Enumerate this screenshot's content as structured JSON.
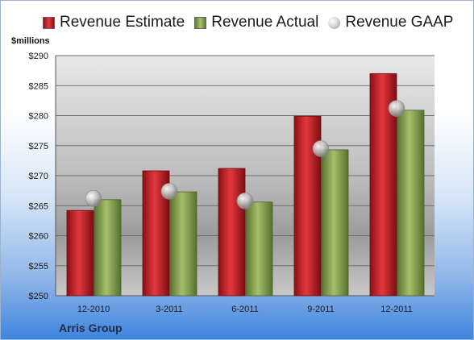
{
  "chart_data": {
    "type": "bar",
    "title": "",
    "ylabel": "$millions",
    "xlabel": "",
    "categories": [
      "12-2010",
      "3-2011",
      "6-2011",
      "9-2011",
      "12-2011"
    ],
    "series": [
      {
        "name": "Revenue Estimate",
        "values": [
          264.2,
          270.8,
          271.2,
          279.9,
          287.0
        ],
        "color": "#c81e25",
        "mark": "bar"
      },
      {
        "name": "Revenue Actual",
        "values": [
          266.0,
          267.3,
          265.6,
          274.3,
          280.9
        ],
        "color": "#8da85a",
        "mark": "bar"
      },
      {
        "name": "Revenue GAAP",
        "values": [
          266.2,
          267.4,
          265.8,
          274.5,
          281.2
        ],
        "color": "#bfbfbf",
        "mark": "sphere"
      }
    ],
    "ylim": [
      250,
      290
    ],
    "yticks": [
      "$250",
      "$255",
      "$260",
      "$265",
      "$270",
      "$275",
      "$280",
      "$285",
      "$290"
    ],
    "grid": true,
    "legend_position": "top"
  },
  "footer": {
    "company": "Arris Group"
  }
}
